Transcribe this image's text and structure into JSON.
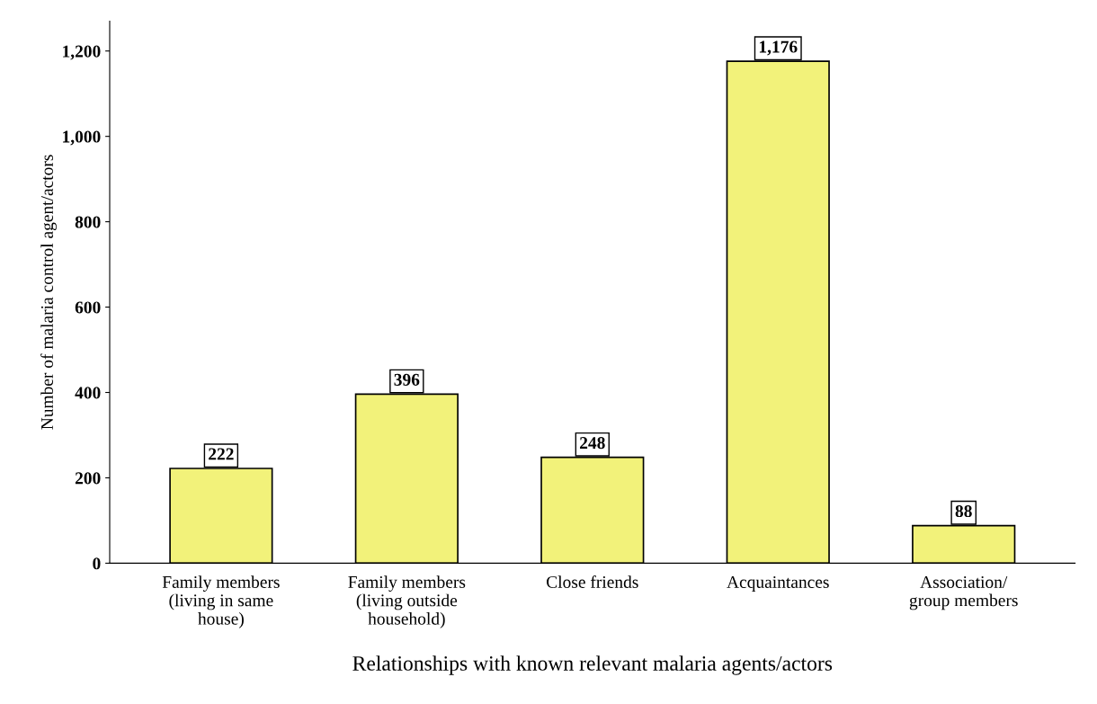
{
  "chart_data": {
    "type": "bar",
    "xlabel": "Relationships with known relevant malaria agents/actors",
    "ylabel": "Number of malaria control agent/actors",
    "categories": [
      "Family members\n(living in same\nhouse)",
      "Family members\n(living outside\nhousehold)",
      "Close friends",
      "Acquaintances",
      "Association/\ngroup members"
    ],
    "values": [
      222,
      396,
      248,
      1176,
      88
    ],
    "value_labels": [
      "222",
      "396",
      "248",
      "1,176",
      "88"
    ],
    "color": "#f2f27a",
    "ylim": [
      0,
      1270
    ],
    "yticks": [
      0,
      200,
      400,
      600,
      800,
      {
        "value": 1000,
        "label": "1,000"
      },
      {
        "value": 1200,
        "label": "1,200"
      }
    ],
    "grid": false
  }
}
